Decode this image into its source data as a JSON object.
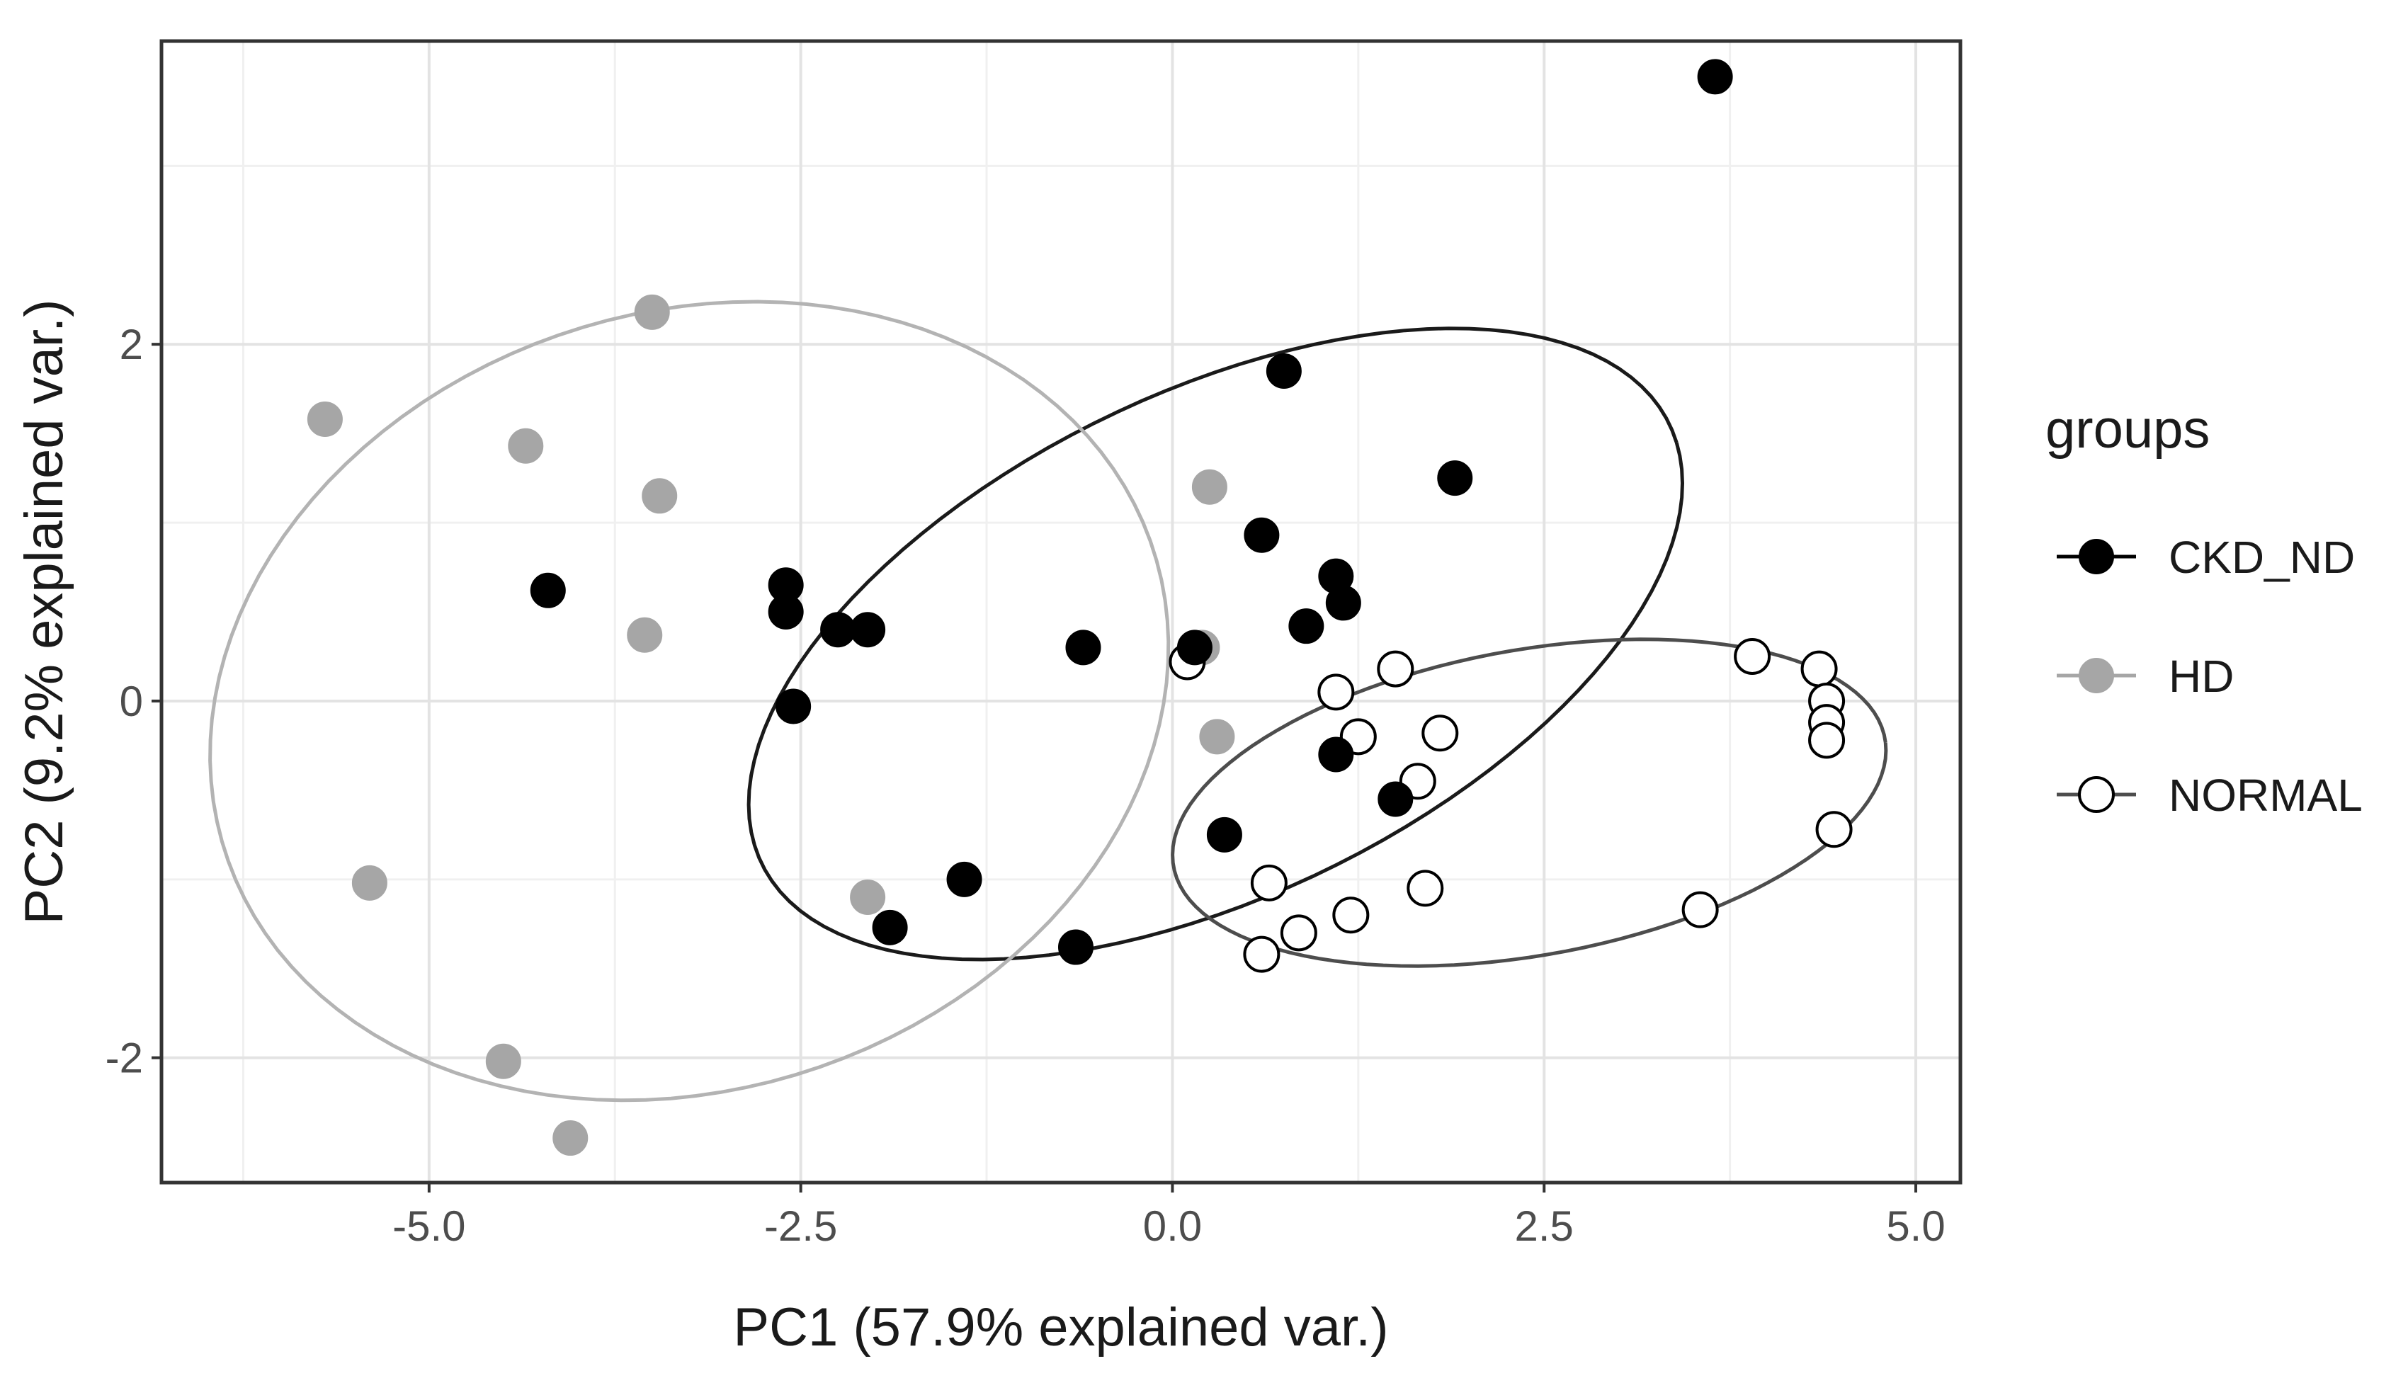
{
  "chart_data": {
    "type": "scatter",
    "title": "",
    "xlabel": "PC1 (57.9% explained var.)",
    "ylabel": "PC2 (9.2% explained var.)",
    "xlim": [
      -6.8,
      5.3
    ],
    "ylim": [
      -2.7,
      3.7
    ],
    "x_ticks": [
      -5.0,
      -2.5,
      0.0,
      2.5,
      5.0
    ],
    "x_tick_labels": [
      "-5.0",
      "-2.5",
      "0.0",
      "2.5",
      "5.0"
    ],
    "y_ticks": [
      -2,
      0,
      2
    ],
    "y_tick_labels": [
      "-2",
      "0",
      "2"
    ],
    "grid": true,
    "legend": {
      "title": "groups",
      "position": "right"
    },
    "colors": {
      "CKD_ND": "#000000",
      "HD": "#a6a6a6",
      "NORMAL": "#ffffff"
    },
    "series": [
      {
        "name": "CKD_ND",
        "color": "#000000",
        "ellipse_color": "#1a1a1a",
        "ellipse": {
          "cx": 0.29,
          "cy": 0.32,
          "rx": 3.3,
          "ry": 1.45,
          "angle_deg": 20
        },
        "points": [
          [
            3.65,
            3.5
          ],
          [
            0.75,
            1.85
          ],
          [
            1.9,
            1.25
          ],
          [
            0.6,
            0.93
          ],
          [
            1.1,
            0.7
          ],
          [
            1.15,
            0.55
          ],
          [
            0.9,
            0.42
          ],
          [
            -2.6,
            0.65
          ],
          [
            -2.6,
            0.5
          ],
          [
            -2.25,
            0.4
          ],
          [
            -2.05,
            0.4
          ],
          [
            -4.2,
            0.62
          ],
          [
            -0.6,
            0.3
          ],
          [
            0.15,
            0.3
          ],
          [
            -2.55,
            -0.03
          ],
          [
            1.1,
            -0.3
          ],
          [
            1.5,
            -0.55
          ],
          [
            0.35,
            -0.75
          ],
          [
            -1.4,
            -1.0
          ],
          [
            -1.9,
            -1.27
          ],
          [
            -0.65,
            -1.38
          ]
        ]
      },
      {
        "name": "HD",
        "color": "#a6a6a6",
        "ellipse_color": "#b3b3b3",
        "ellipse": {
          "cx": -3.25,
          "cy": 0.0,
          "rx": 3.25,
          "ry": 2.2,
          "angle_deg": 10
        },
        "points": [
          [
            -3.5,
            2.18
          ],
          [
            -5.7,
            1.58
          ],
          [
            -4.35,
            1.43
          ],
          [
            -3.45,
            1.15
          ],
          [
            0.25,
            1.2
          ],
          [
            -3.55,
            0.37
          ],
          [
            0.2,
            0.3
          ],
          [
            0.3,
            -0.2
          ],
          [
            -5.4,
            -1.02
          ],
          [
            -2.05,
            -1.1
          ],
          [
            -4.5,
            -2.02
          ],
          [
            -4.05,
            -2.45
          ]
        ]
      },
      {
        "name": "NORMAL",
        "color": "#ffffff",
        "ellipse_color": "#4d4d4d",
        "ellipse": {
          "cx": 2.4,
          "cy": -0.57,
          "rx": 2.42,
          "ry": 0.86,
          "angle_deg": 8
        },
        "points": [
          [
            0.1,
            0.22
          ],
          [
            1.1,
            0.05
          ],
          [
            1.5,
            0.18
          ],
          [
            3.9,
            0.25
          ],
          [
            4.35,
            0.18
          ],
          [
            4.4,
            0.0
          ],
          [
            4.4,
            -0.12
          ],
          [
            4.4,
            -0.22
          ],
          [
            1.25,
            -0.2
          ],
          [
            1.8,
            -0.18
          ],
          [
            1.65,
            -0.45
          ],
          [
            4.45,
            -0.72
          ],
          [
            0.65,
            -1.02
          ],
          [
            1.7,
            -1.05
          ],
          [
            0.85,
            -1.3
          ],
          [
            1.2,
            -1.2
          ],
          [
            0.6,
            -1.42
          ],
          [
            3.55,
            -1.17
          ]
        ]
      }
    ]
  }
}
